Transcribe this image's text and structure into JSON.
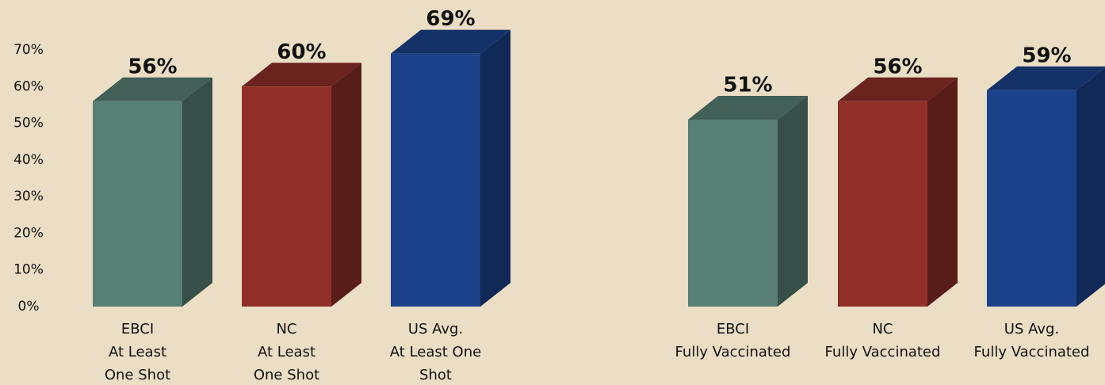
{
  "chart_data": {
    "type": "bar3d",
    "categories": [
      [
        "EBCI",
        "At Least",
        "One Shot"
      ],
      [
        "NC",
        "At Least",
        "One Shot"
      ],
      [
        "US Avg.",
        "At Least One",
        "Shot"
      ],
      [
        "EBCI",
        "Fully Vaccinated"
      ],
      [
        "NC",
        "Fully Vaccinated"
      ],
      [
        "US Avg.",
        "Fully Vaccinated"
      ]
    ],
    "values": [
      56,
      60,
      69,
      51,
      56,
      59
    ],
    "value_labels": [
      "56%",
      "60%",
      "69%",
      "51%",
      "56%",
      "59%"
    ],
    "colors": [
      "#587f75",
      "#8f2f28",
      "#1b428a",
      "#587f75",
      "#8f2f28",
      "#1b428a"
    ],
    "ylim": [
      0,
      70
    ],
    "yticks": [
      {
        "value": 0,
        "label": "0%"
      },
      {
        "value": 10,
        "label": "10%"
      },
      {
        "value": 20,
        "label": "20%"
      },
      {
        "value": 30,
        "label": "30%"
      },
      {
        "value": 40,
        "label": "40%"
      },
      {
        "value": 50,
        "label": "50%"
      },
      {
        "value": 60,
        "label": "60%"
      },
      {
        "value": 70,
        "label": "70%"
      }
    ]
  }
}
